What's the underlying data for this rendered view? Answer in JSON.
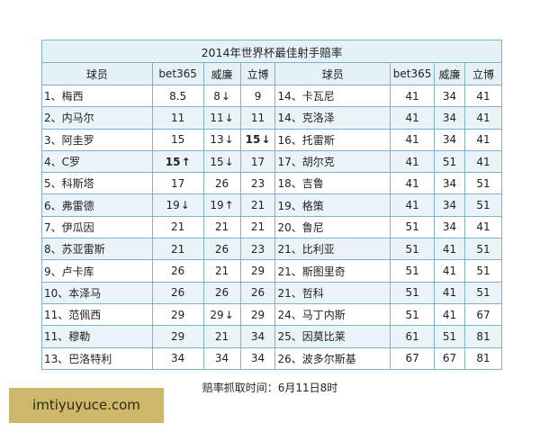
{
  "title": "2014年世界杯最佳射手赔率",
  "headers": [
    "球员",
    "bet365",
    "威廉",
    "立博",
    "球员",
    "bet365",
    "威廉",
    "立博"
  ],
  "left": [
    {
      "name": "1、梅西",
      "c": [
        {
          "v": "8.5"
        },
        {
          "v": "8",
          "a": "↓"
        },
        {
          "v": "9"
        }
      ]
    },
    {
      "name": "2、内马尔",
      "c": [
        {
          "v": "11"
        },
        {
          "v": "11",
          "a": "↓"
        },
        {
          "v": "11"
        }
      ]
    },
    {
      "name": "3、阿圭罗",
      "c": [
        {
          "v": "15"
        },
        {
          "v": "13",
          "a": "↓"
        },
        {
          "v": "15",
          "a": "↓",
          "b": true
        }
      ]
    },
    {
      "name": "4、C罗",
      "c": [
        {
          "v": "15",
          "a": "↑",
          "b": true
        },
        {
          "v": "15",
          "a": "↓"
        },
        {
          "v": "17"
        }
      ]
    },
    {
      "name": "5、科斯塔",
      "c": [
        {
          "v": "17"
        },
        {
          "v": "26"
        },
        {
          "v": "23"
        }
      ]
    },
    {
      "name": "6、弗雷德",
      "c": [
        {
          "v": "19",
          "a": "↓"
        },
        {
          "v": "19",
          "a": "↑"
        },
        {
          "v": "21"
        }
      ]
    },
    {
      "name": "7、伊瓜因",
      "c": [
        {
          "v": "21"
        },
        {
          "v": "21"
        },
        {
          "v": "21"
        }
      ]
    },
    {
      "name": "8、苏亚雷斯",
      "c": [
        {
          "v": "21"
        },
        {
          "v": "26"
        },
        {
          "v": "23"
        }
      ]
    },
    {
      "name": "9、卢卡库",
      "c": [
        {
          "v": "26"
        },
        {
          "v": "21"
        },
        {
          "v": "29"
        }
      ]
    },
    {
      "name": "10、本泽马",
      "c": [
        {
          "v": "26"
        },
        {
          "v": "26"
        },
        {
          "v": "26"
        }
      ]
    },
    {
      "name": "11、范佩西",
      "c": [
        {
          "v": "29"
        },
        {
          "v": "29",
          "a": "↓"
        },
        {
          "v": "29"
        }
      ]
    },
    {
      "name": "11、穆勒",
      "c": [
        {
          "v": "29"
        },
        {
          "v": "21"
        },
        {
          "v": "34"
        }
      ]
    },
    {
      "name": "13、巴洛特利",
      "c": [
        {
          "v": "34"
        },
        {
          "v": "34"
        },
        {
          "v": "34"
        }
      ]
    }
  ],
  "right": [
    {
      "name": "14、卡瓦尼",
      "c": [
        {
          "v": "41"
        },
        {
          "v": "34"
        },
        {
          "v": "41"
        }
      ]
    },
    {
      "name": "14、克洛泽",
      "c": [
        {
          "v": "41"
        },
        {
          "v": "34"
        },
        {
          "v": "41"
        }
      ]
    },
    {
      "name": "16、托雷斯",
      "c": [
        {
          "v": "41"
        },
        {
          "v": "34"
        },
        {
          "v": "41"
        }
      ]
    },
    {
      "name": "17、胡尔克",
      "c": [
        {
          "v": "41"
        },
        {
          "v": "51"
        },
        {
          "v": "41"
        }
      ]
    },
    {
      "name": "18、吉鲁",
      "c": [
        {
          "v": "41"
        },
        {
          "v": "34"
        },
        {
          "v": "51"
        }
      ]
    },
    {
      "name": "19、格策",
      "c": [
        {
          "v": "41"
        },
        {
          "v": "34"
        },
        {
          "v": "51"
        }
      ]
    },
    {
      "name": "20、鲁尼",
      "c": [
        {
          "v": "51"
        },
        {
          "v": "34"
        },
        {
          "v": "41"
        }
      ]
    },
    {
      "name": "21、比利亚",
      "c": [
        {
          "v": "51"
        },
        {
          "v": "41"
        },
        {
          "v": "51"
        }
      ]
    },
    {
      "name": "21、斯图里奇",
      "c": [
        {
          "v": "51"
        },
        {
          "v": "41"
        },
        {
          "v": "51"
        }
      ]
    },
    {
      "name": "21、哲科",
      "c": [
        {
          "v": "51"
        },
        {
          "v": "41"
        },
        {
          "v": "51"
        }
      ]
    },
    {
      "name": "24、马丁内斯",
      "c": [
        {
          "v": "51"
        },
        {
          "v": "41"
        },
        {
          "v": "67"
        }
      ]
    },
    {
      "name": "25、因莫比莱",
      "c": [
        {
          "v": "61"
        },
        {
          "v": "51"
        },
        {
          "v": "81"
        }
      ]
    },
    {
      "name": "26、波多尔斯基",
      "c": [
        {
          "v": "67"
        },
        {
          "v": "67"
        },
        {
          "v": "81"
        }
      ]
    }
  ],
  "caption": "赔率抓取时间：6月11日8时",
  "watermark": "imtiyuyuce.com",
  "colors": {
    "border": "#7fb3c8",
    "header_bg": "#e4f1f6",
    "alt_row": "#eaf4f8",
    "watermark_bg": "#cdb76a"
  }
}
